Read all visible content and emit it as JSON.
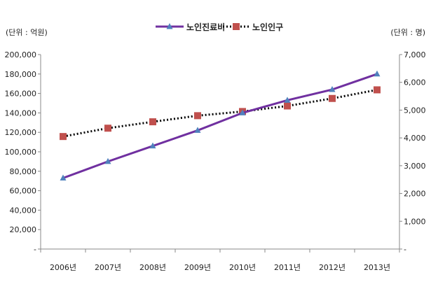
{
  "chart_data": {
    "type": "line",
    "title": "",
    "categories": [
      "2006년",
      "2007년",
      "2008년",
      "2009년",
      "2010년",
      "2011년",
      "2012년",
      "2013년"
    ],
    "y_left_unit_label": "(단위 : 억원)",
    "y_right_unit_label": "(단위 : 명)",
    "y_left_ticks": [
      "-",
      "20,000",
      "40,000",
      "60,000",
      "80,000",
      "100,000",
      "120,000",
      "140,000",
      "160,000",
      "180,000",
      "200,000"
    ],
    "y_right_ticks": [
      "-",
      "1,000",
      "2,000",
      "3,000",
      "4,000",
      "5,000",
      "6,000",
      "7,000"
    ],
    "y_left_lim": [
      0,
      200000
    ],
    "y_right_lim": [
      0,
      7000
    ],
    "legend_position": "top-center",
    "grid": false,
    "series": [
      {
        "name": "노인진료비",
        "axis": "left",
        "style": "solid-line-triangle-markers",
        "line_color": "#7030A0",
        "marker_color": "#4F81BD",
        "values": [
          73000,
          90000,
          106000,
          122000,
          140000,
          153000,
          164000,
          180000
        ]
      },
      {
        "name": "노인인구",
        "axis": "right",
        "style": "dotted-line-square-markers",
        "line_color": "#000000",
        "marker_color": "#C0504D",
        "values": [
          4050,
          4350,
          4580,
          4800,
          4950,
          5150,
          5420,
          5730
        ]
      }
    ]
  }
}
